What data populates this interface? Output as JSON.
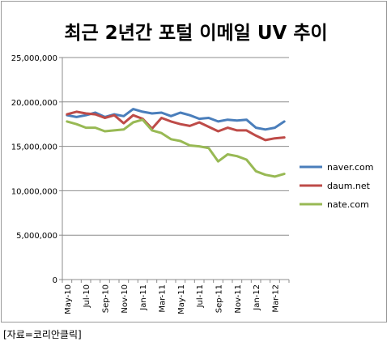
{
  "source_note": "[자료=코리안클릭]",
  "chart_data": {
    "type": "line",
    "title": "최근 2년간 포털 이메일 UV 추이",
    "xlabel": "",
    "ylabel": "",
    "ylim": [
      0,
      25000000
    ],
    "yticks": [
      0,
      5000000,
      10000000,
      15000000,
      20000000,
      25000000
    ],
    "ytick_labels": [
      "0",
      "5,000,000",
      "10,000,000",
      "15,000,000",
      "20,000,000",
      "25,000,000"
    ],
    "grid": "horizontal",
    "legend_position": "right",
    "x": [
      "May-10",
      "Jun-10",
      "Jul-10",
      "Aug-10",
      "Sep-10",
      "Oct-10",
      "Nov-10",
      "Dec-10",
      "Jan-11",
      "Feb-11",
      "Mar-11",
      "Apr-11",
      "May-11",
      "Jun-11",
      "Jul-11",
      "Aug-11",
      "Sep-11",
      "Oct-11",
      "Nov-11",
      "Dec-11",
      "Jan-12",
      "Feb-12",
      "Mar-12",
      "Apr-12"
    ],
    "xtick_labels": [
      "May-10",
      "Jul-10",
      "Sep-10",
      "Nov-10",
      "Jan-11",
      "Mar-11",
      "May-11",
      "Jul-11",
      "Sep-11",
      "Nov-11",
      "Jan-12",
      "Mar-12"
    ],
    "series": [
      {
        "name": "naver.com",
        "color": "#4a7ebb",
        "values": [
          18500000,
          18300000,
          18500000,
          18800000,
          18300000,
          18600000,
          18400000,
          19200000,
          18900000,
          18700000,
          18800000,
          18400000,
          18800000,
          18500000,
          18100000,
          18200000,
          17800000,
          18000000,
          17900000,
          18000000,
          17100000,
          16900000,
          17100000,
          17800000
        ]
      },
      {
        "name": "daum.net",
        "color": "#be4b48",
        "values": [
          18600000,
          18900000,
          18700000,
          18600000,
          18200000,
          18500000,
          17600000,
          18500000,
          18100000,
          17000000,
          18200000,
          17800000,
          17500000,
          17300000,
          17700000,
          17200000,
          16700000,
          17100000,
          16800000,
          16800000,
          16200000,
          15700000,
          15900000,
          16000000
        ]
      },
      {
        "name": "nate.com",
        "color": "#98b954",
        "values": [
          17800000,
          17500000,
          17100000,
          17100000,
          16700000,
          16800000,
          16900000,
          17700000,
          18000000,
          16800000,
          16500000,
          15800000,
          15600000,
          15100000,
          15000000,
          14800000,
          13300000,
          14100000,
          13900000,
          13500000,
          12200000,
          11800000,
          11600000,
          11900000
        ]
      }
    ]
  }
}
